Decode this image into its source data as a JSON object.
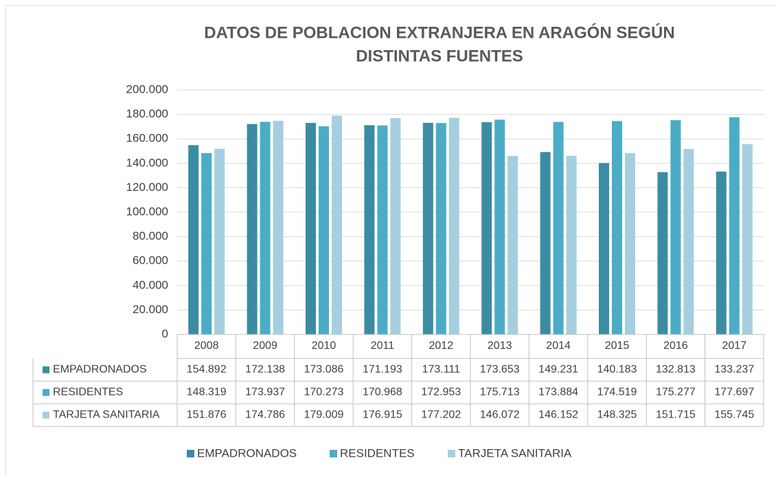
{
  "chart_data": {
    "type": "bar",
    "title": [
      "DATOS DE POBLACION EXTRANJERA EN ARAGÓN SEGÚN",
      "DISTINTAS FUENTES"
    ],
    "categories": [
      "2008",
      "2009",
      "2010",
      "2011",
      "2012",
      "2013",
      "2014",
      "2015",
      "2016",
      "2017"
    ],
    "series": [
      {
        "name": "EMPADRONADOS",
        "color": "#3b8ca3",
        "values": [
          154892,
          172138,
          173086,
          171193,
          173111,
          173653,
          149231,
          140183,
          132813,
          133237
        ],
        "value_labels": [
          "154.892",
          "172.138",
          "173.086",
          "171.193",
          "173.111",
          "173.653",
          "149.231",
          "140.183",
          "132.813",
          "133.237"
        ]
      },
      {
        "name": "RESIDENTES",
        "color": "#4bacc6",
        "values": [
          148319,
          173937,
          170273,
          170968,
          172953,
          175713,
          173884,
          174519,
          175277,
          177697
        ],
        "value_labels": [
          "148.319",
          "173.937",
          "170.273",
          "170.968",
          "172.953",
          "175.713",
          "173.884",
          "174.519",
          "175.277",
          "177.697"
        ]
      },
      {
        "name": "TARJETA SANITARIA",
        "color": "#a5cfdf",
        "values": [
          151876,
          174786,
          179009,
          176915,
          177202,
          146072,
          146152,
          148325,
          151715,
          155745
        ],
        "value_labels": [
          "151.876",
          "174.786",
          "179.009",
          "176.915",
          "177.202",
          "146.072",
          "146.152",
          "148.325",
          "151.715",
          "155.745"
        ]
      }
    ],
    "ylim": [
      0,
      200000
    ],
    "yticks": [
      0,
      {
        "value": 20000,
        "label": "20.000"
      },
      {
        "value": 40000,
        "label": "40.000"
      },
      {
        "value": 60000,
        "label": "60.000"
      },
      {
        "value": 80000,
        "label": "80.000"
      },
      {
        "value": 100000,
        "label": "100.000"
      },
      {
        "value": 120000,
        "label": "120.000"
      },
      {
        "value": 140000,
        "label": "140.000"
      },
      {
        "value": 160000,
        "label": "160.000"
      },
      {
        "value": 180000,
        "label": "180.000"
      },
      {
        "value": 200000,
        "label": "200.000"
      }
    ],
    "grid": true,
    "legend": "bottom"
  }
}
